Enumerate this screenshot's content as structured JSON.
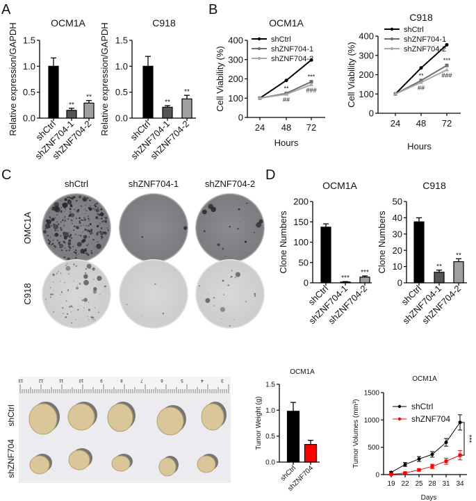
{
  "panel_labels": {
    "a": "A",
    "b": "B",
    "c": "C",
    "d": "D"
  },
  "colony_assay": {
    "columns": [
      "shCtrl",
      "shZNF704-1",
      "shZNF704-2"
    ],
    "rows": [
      "OMC1A",
      "C918"
    ]
  },
  "tumor_photo": {
    "rows": [
      "shCtrl",
      "shZNF704"
    ],
    "ruler_numbers": [
      "13",
      "12",
      "11",
      "10",
      "9",
      "8",
      "7",
      "6",
      "5",
      "4",
      "3"
    ]
  },
  "chart_data": [
    {
      "type": "bar",
      "title": "OCM1A",
      "ylabel": "Relative expression/GAPDH",
      "categories": [
        "shCtrl",
        "shZNF704-1",
        "shZNF704-2"
      ],
      "values": [
        1.0,
        0.15,
        0.29
      ],
      "errors": [
        0.16,
        0.04,
        0.05
      ],
      "annotations": [
        "",
        "**",
        "**"
      ],
      "colors": [
        "#000000",
        "#555555",
        "#a0a0a0"
      ],
      "ylim": [
        0,
        1.5
      ],
      "yticks": [
        "0.0",
        "0.5",
        "1.0",
        "1.5"
      ]
    },
    {
      "type": "bar",
      "title": "C918",
      "ylabel": "Relative expression/GAPDH",
      "categories": [
        "shCtrl",
        "shZNF704-1",
        "shZNF704-2"
      ],
      "values": [
        1.0,
        0.21,
        0.37
      ],
      "errors": [
        0.19,
        0.03,
        0.07
      ],
      "annotations": [
        "",
        "**",
        "**"
      ],
      "colors": [
        "#000000",
        "#555555",
        "#a0a0a0"
      ],
      "ylim": [
        0,
        1.5
      ],
      "yticks": [
        "0.0",
        "0.5",
        "1.0",
        "1.5"
      ]
    },
    {
      "type": "line",
      "title": "OCM1A",
      "xlabel": "Hours",
      "ylabel": "Cell Viability (%)",
      "x": [
        24,
        48,
        72
      ],
      "ylim": [
        0,
        400
      ],
      "yticks": [
        "0",
        "100",
        "200",
        "300",
        "400"
      ],
      "legend": "top-left",
      "series": [
        {
          "name": "shCtrl",
          "values": [
            100,
            192,
            298
          ],
          "color": "#000000",
          "marker": "circle"
        },
        {
          "name": "shZNF704-1",
          "values": [
            100,
            125,
            185
          ],
          "color": "#6e6e6e",
          "marker": "square"
        },
        {
          "name": "shZNF704-2",
          "values": [
            100,
            120,
            170
          ],
          "color": "#a8a8a8",
          "marker": "triangle"
        }
      ],
      "annotations": [
        {
          "x": 48,
          "above": "**",
          "below": "##"
        },
        {
          "x": 72,
          "above": "***",
          "below": "###"
        }
      ]
    },
    {
      "type": "line",
      "title": "C918",
      "xlabel": "Hours",
      "ylabel": "Cell Viability (%)",
      "x": [
        24,
        48,
        72
      ],
      "ylim": [
        0,
        400
      ],
      "yticks": [
        "0",
        "100",
        "200",
        "300",
        "400"
      ],
      "legend": "top-left",
      "series": [
        {
          "name": "shCtrl",
          "values": [
            100,
            235,
            355
          ],
          "color": "#000000",
          "marker": "circle"
        },
        {
          "name": "shZNF704-1",
          "values": [
            100,
            170,
            248
          ],
          "color": "#6e6e6e",
          "marker": "square"
        },
        {
          "name": "shZNF704-2",
          "values": [
            100,
            160,
            225
          ],
          "color": "#a8a8a8",
          "marker": "triangle"
        }
      ],
      "annotations": [
        {
          "x": 48,
          "above": "**",
          "below": "##"
        },
        {
          "x": 72,
          "above": "***",
          "below": "###"
        }
      ]
    },
    {
      "type": "bar",
      "title": "OCM1A",
      "ylabel": "Clone Numbers",
      "categories": [
        "shCtrl",
        "shZNF704-1",
        "shZNF704-2"
      ],
      "values": [
        137,
        2,
        14
      ],
      "errors": [
        8,
        1,
        3
      ],
      "annotations": [
        "",
        "***",
        "***"
      ],
      "colors": [
        "#000000",
        "#555555",
        "#a0a0a0"
      ],
      "ylim": [
        0,
        200
      ],
      "yticks": [
        "0",
        "50",
        "100",
        "150",
        "200"
      ]
    },
    {
      "type": "bar",
      "title": "C918",
      "ylabel": "Clone Numbers",
      "categories": [
        "shCtrl",
        "shZNF704-1",
        "shZNF704-2"
      ],
      "values": [
        37.5,
        6.5,
        13
      ],
      "errors": [
        2.5,
        1.3,
        1.8
      ],
      "annotations": [
        "",
        "**",
        "**"
      ],
      "colors": [
        "#000000",
        "#555555",
        "#a0a0a0"
      ],
      "ylim": [
        0,
        50
      ],
      "yticks": [
        "0",
        "10",
        "20",
        "30",
        "40",
        "50"
      ]
    },
    {
      "type": "bar",
      "title": "OCM1A",
      "ylabel": "Tumor Weight (g)",
      "categories": [
        "shCtrl",
        "shZNF704"
      ],
      "values": [
        0.98,
        0.34
      ],
      "errors": [
        0.17,
        0.08
      ],
      "annotations": [
        "",
        ""
      ],
      "colors": [
        "#000000",
        "#ff0000"
      ],
      "ylim": [
        0,
        1.5
      ],
      "yticks": [
        "0.0",
        "0.5",
        "1.0",
        "1.5"
      ]
    },
    {
      "type": "line",
      "title": "OCM1A",
      "xlabel": "Days",
      "ylabel": "Tumor Volumes (mm³)",
      "x": [
        19,
        22,
        25,
        28,
        31,
        34
      ],
      "ylim": [
        0,
        1500
      ],
      "yticks": [
        "0",
        "500",
        "1000",
        "1500"
      ],
      "legend": "top-left",
      "series": [
        {
          "name": "shCtrl",
          "values": [
            40,
            185,
            285,
            370,
            590,
            955
          ],
          "errors": [
            15,
            35,
            45,
            50,
            70,
            140
          ],
          "color": "#000000",
          "marker": "circle"
        },
        {
          "name": "shZNF704",
          "values": [
            5,
            30,
            85,
            150,
            245,
            355
          ],
          "errors": [
            5,
            10,
            20,
            40,
            55,
            85
          ],
          "color": "#ff0000",
          "marker": "square"
        }
      ],
      "bracket_annotation": "***"
    }
  ]
}
